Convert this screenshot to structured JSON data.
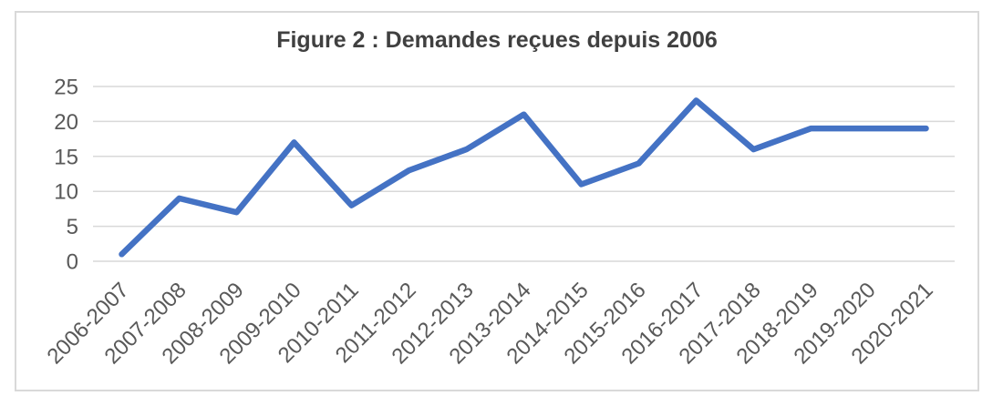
{
  "chart_data": {
    "type": "line",
    "title": "Figure 2 : Demandes reçues depuis 2006",
    "categories": [
      "2006-2007",
      "2007-2008",
      "2008-2009",
      "2009-2010",
      "2010-2011",
      "2011-2012",
      "2012-2013",
      "2013-2014",
      "2014-2015",
      "2015-2016",
      "2016-2017",
      "2017-2018",
      "2018-2019",
      "2019-2020",
      "2020-2021"
    ],
    "values": [
      1,
      9,
      7,
      17,
      8,
      13,
      16,
      21,
      11,
      14,
      23,
      16,
      19,
      19,
      19
    ],
    "xlabel": "",
    "ylabel": "",
    "yticks": [
      0,
      5,
      10,
      15,
      20,
      25
    ],
    "ylim": [
      0,
      25
    ],
    "grid": "horizontal",
    "legend": false,
    "colors": {
      "line": "#4472C4",
      "gridline": "#D9D9D9",
      "frame_border": "#D9D9D9",
      "tick_text": "#595959",
      "title_text": "#404040",
      "background": "#FFFFFF"
    }
  }
}
